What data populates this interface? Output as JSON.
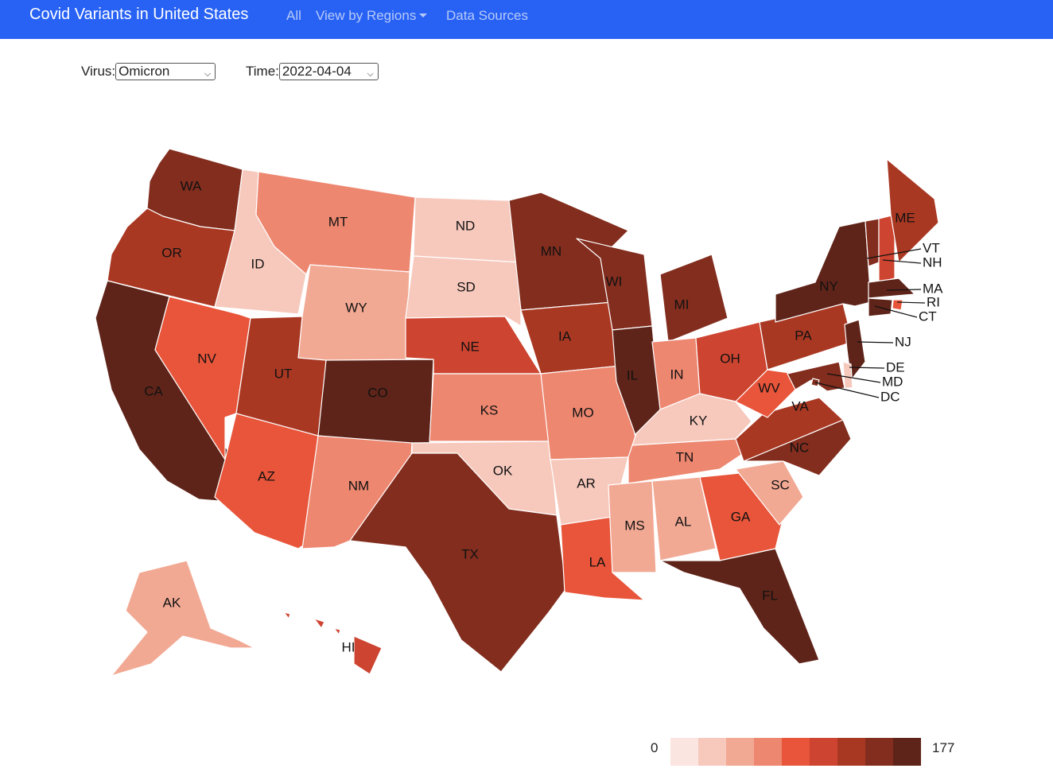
{
  "navbar": {
    "brand": "Covid Variants in United States",
    "links": [
      "All",
      "View by Regions",
      "Data Sources"
    ]
  },
  "controls": {
    "virus_label": "Virus:",
    "virus_value": "Omicron",
    "time_label": "Time:",
    "time_value": "2022-04-04"
  },
  "map": {
    "palette": [
      "#fbe5e0",
      "#f7c9bd",
      "#f2a994",
      "#ed8770",
      "#e8553a",
      "#cd4430",
      "#a93823",
      "#822d1e",
      "#5f2419"
    ],
    "states": [
      {
        "code": "WA",
        "level": 7
      },
      {
        "code": "OR",
        "level": 6
      },
      {
        "code": "CA",
        "level": 8
      },
      {
        "code": "ID",
        "level": 1
      },
      {
        "code": "NV",
        "level": 4
      },
      {
        "code": "MT",
        "level": 3
      },
      {
        "code": "WY",
        "level": 2
      },
      {
        "code": "UT",
        "level": 6
      },
      {
        "code": "AZ",
        "level": 4
      },
      {
        "code": "CO",
        "level": 8
      },
      {
        "code": "NM",
        "level": 3
      },
      {
        "code": "ND",
        "level": 1
      },
      {
        "code": "SD",
        "level": 1
      },
      {
        "code": "NE",
        "level": 5
      },
      {
        "code": "KS",
        "level": 3
      },
      {
        "code": "OK",
        "level": 1
      },
      {
        "code": "TX",
        "level": 7
      },
      {
        "code": "MN",
        "level": 7
      },
      {
        "code": "IA",
        "level": 6
      },
      {
        "code": "MO",
        "level": 3
      },
      {
        "code": "AR",
        "level": 1
      },
      {
        "code": "LA",
        "level": 4
      },
      {
        "code": "WI",
        "level": 7
      },
      {
        "code": "IL",
        "level": 8
      },
      {
        "code": "MI",
        "level": 7
      },
      {
        "code": "IN",
        "level": 3
      },
      {
        "code": "OH",
        "level": 5
      },
      {
        "code": "KY",
        "level": 1
      },
      {
        "code": "TN",
        "level": 3
      },
      {
        "code": "MS",
        "level": 2
      },
      {
        "code": "AL",
        "level": 2
      },
      {
        "code": "GA",
        "level": 4
      },
      {
        "code": "FL",
        "level": 8
      },
      {
        "code": "SC",
        "level": 2
      },
      {
        "code": "NC",
        "level": 7
      },
      {
        "code": "VA",
        "level": 6
      },
      {
        "code": "WV",
        "level": 4
      },
      {
        "code": "PA",
        "level": 6
      },
      {
        "code": "NY",
        "level": 8
      },
      {
        "code": "VT",
        "level": 7
      },
      {
        "code": "NH",
        "level": 5
      },
      {
        "code": "ME",
        "level": 6
      },
      {
        "code": "MA",
        "level": 8
      },
      {
        "code": "RI",
        "level": 4
      },
      {
        "code": "CT",
        "level": 8
      },
      {
        "code": "NJ",
        "level": 8
      },
      {
        "code": "DE",
        "level": 1
      },
      {
        "code": "MD",
        "level": 7
      },
      {
        "code": "DC",
        "level": 7
      },
      {
        "code": "AK",
        "level": 2
      },
      {
        "code": "HI",
        "level": 5
      }
    ]
  },
  "legend": {
    "min": "0",
    "max": "177"
  }
}
